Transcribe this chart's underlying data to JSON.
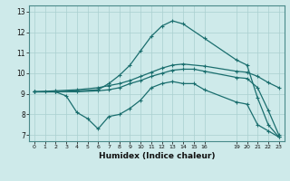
{
  "xlabel": "Humidex (Indice chaleur)",
  "bg_color": "#ceeaea",
  "grid_color": "#aacfcf",
  "line_color": "#1a6e6e",
  "xlim": [
    -0.5,
    23.5
  ],
  "ylim": [
    6.7,
    13.3
  ],
  "yticks": [
    7,
    8,
    9,
    10,
    11,
    12,
    13
  ],
  "xticks": [
    0,
    1,
    2,
    3,
    4,
    5,
    6,
    7,
    8,
    9,
    10,
    11,
    12,
    13,
    14,
    15,
    16,
    19,
    20,
    21,
    22,
    23
  ],
  "xtick_labels": [
    "0",
    "1",
    "2",
    "3",
    "4",
    "5",
    "6",
    "7",
    "8",
    "9",
    "10",
    "11",
    "12",
    "13",
    "14",
    "15",
    "16",
    "19",
    "20",
    "21",
    "22",
    "23"
  ],
  "line1_x": [
    0,
    1,
    2,
    3,
    4,
    5,
    6,
    7,
    8,
    9,
    10,
    11,
    12,
    13,
    14,
    15,
    16,
    19,
    20,
    21,
    22,
    23
  ],
  "line1_y": [
    9.1,
    9.1,
    9.1,
    8.9,
    8.1,
    7.8,
    7.3,
    7.9,
    8.0,
    8.3,
    8.7,
    9.3,
    9.5,
    9.6,
    9.5,
    9.5,
    9.2,
    8.6,
    8.5,
    7.5,
    7.2,
    6.9
  ],
  "line2_x": [
    0,
    2,
    4,
    6,
    7,
    8,
    9,
    10,
    11,
    12,
    13,
    14,
    16,
    19,
    20,
    21,
    22,
    23
  ],
  "line2_y": [
    9.1,
    9.15,
    9.2,
    9.3,
    9.4,
    9.5,
    9.65,
    9.85,
    10.05,
    10.25,
    10.4,
    10.45,
    10.35,
    10.1,
    10.05,
    9.85,
    9.55,
    9.3
  ],
  "line3_x": [
    0,
    2,
    6,
    7,
    8,
    9,
    10,
    11,
    12,
    13,
    14,
    16,
    19,
    20,
    21,
    22,
    23
  ],
  "line3_y": [
    9.1,
    9.1,
    9.2,
    9.5,
    9.9,
    10.4,
    11.1,
    11.8,
    12.3,
    12.55,
    12.4,
    11.7,
    10.65,
    10.4,
    8.8,
    7.5,
    6.9
  ],
  "line4_x": [
    0,
    2,
    4,
    6,
    7,
    8,
    9,
    10,
    11,
    12,
    13,
    14,
    15,
    16,
    19,
    20,
    21,
    22,
    23
  ],
  "line4_y": [
    9.1,
    9.1,
    9.1,
    9.15,
    9.2,
    9.3,
    9.5,
    9.65,
    9.85,
    10.0,
    10.15,
    10.2,
    10.2,
    10.1,
    9.8,
    9.75,
    9.3,
    8.2,
    7.0
  ]
}
